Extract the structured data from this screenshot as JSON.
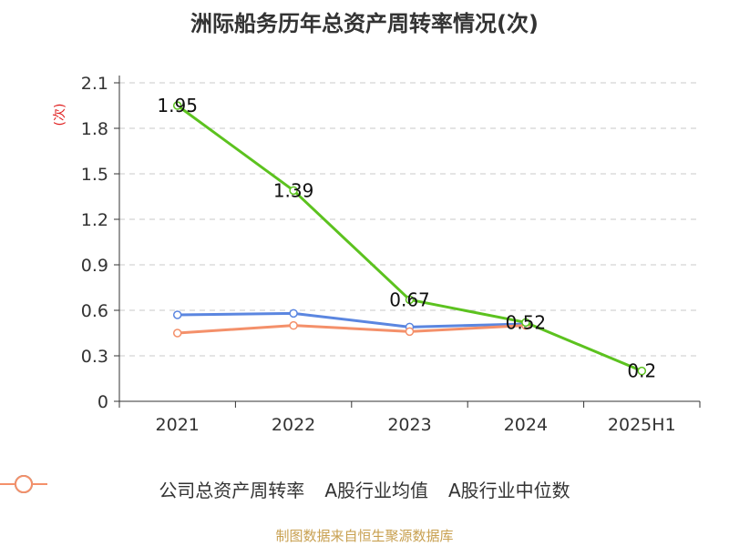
{
  "title": "洲际船务历年总资产周转率情况(次)",
  "source": "制图数据来自恒生聚源数据库",
  "colors": {
    "company": "#5cc21f",
    "mean": "#5b86e0",
    "median": "#f4906a",
    "ylabel": "#e02020",
    "grid": "#c8c8c8"
  },
  "chart_data": {
    "type": "line",
    "title": "洲际船务历年总资产周转率情况(次)",
    "ylabel": "(次)",
    "xlabel": "",
    "ylim": [
      0,
      2.1
    ],
    "yticks": [
      0,
      0.3,
      0.6,
      0.9,
      1.2,
      1.5,
      1.8,
      2.1
    ],
    "ytick_labels": [
      "0",
      "0.3",
      "0.6",
      "0.9",
      "1.2",
      "1.5",
      "1.8",
      "2.1"
    ],
    "grid": true,
    "legend": "bottom-center",
    "categories": [
      "2021",
      "2022",
      "2023",
      "2024",
      "2025H1"
    ],
    "series": [
      {
        "name": "公司总资产周转率",
        "color_key": "company",
        "values": [
          1.95,
          1.39,
          0.67,
          0.52,
          0.2
        ],
        "labels": [
          "1.95",
          "1.39",
          "0.67",
          "0.52",
          "0.2"
        ]
      },
      {
        "name": "A股行业均值",
        "color_key": "mean",
        "values": [
          0.57,
          0.58,
          0.49,
          0.51,
          null
        ]
      },
      {
        "name": "A股行业中位数",
        "color_key": "median",
        "values": [
          0.45,
          0.5,
          0.46,
          0.5,
          null
        ]
      }
    ]
  }
}
